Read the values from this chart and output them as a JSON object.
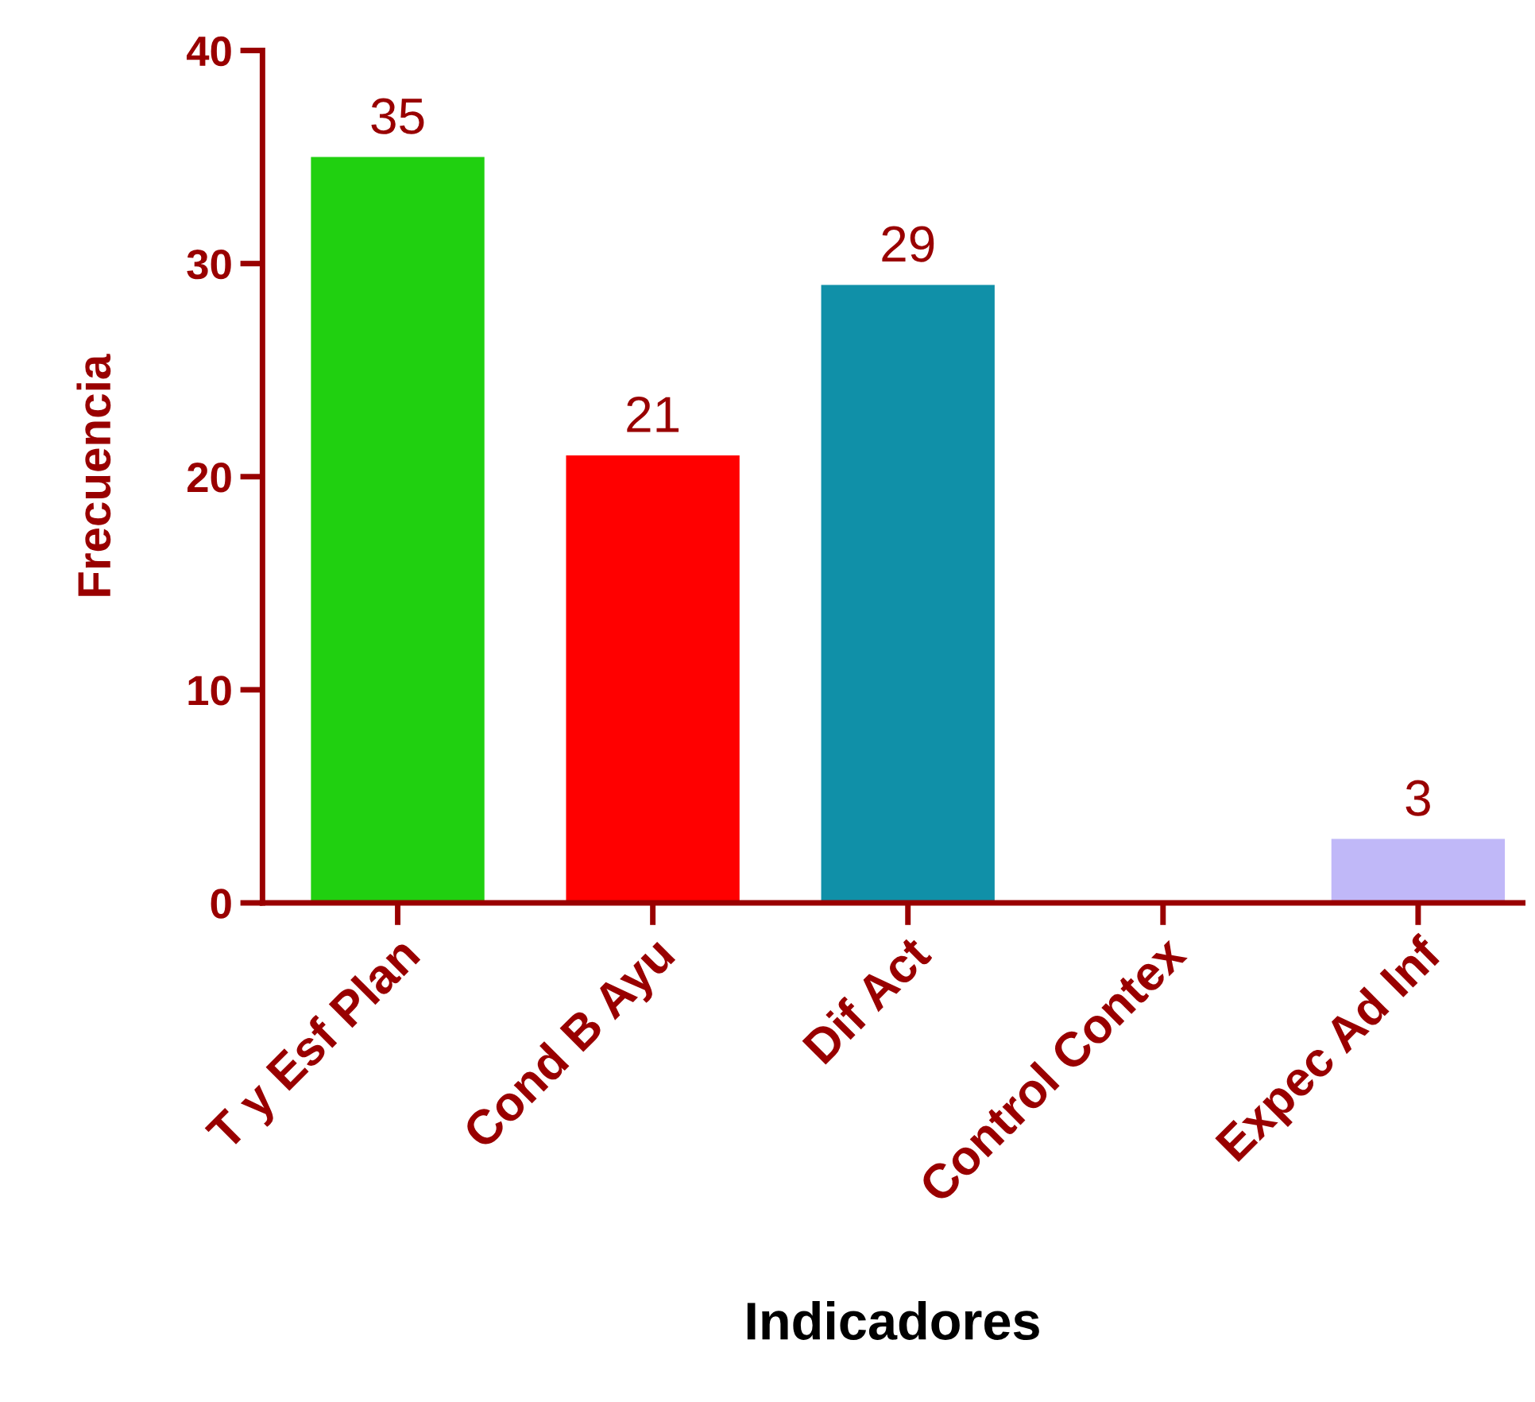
{
  "chart_data": {
    "type": "bar",
    "categories": [
      "T y Esf Plan",
      "Cond B Ayu",
      "Dif Act",
      "Control Contex",
      "Expec Ad Inf"
    ],
    "values": [
      35,
      21,
      29,
      0,
      3
    ],
    "value_labels": [
      "35",
      "21",
      "29",
      null,
      "3"
    ],
    "colors": [
      "#20d010",
      "#ff0000",
      "#1090a8",
      null,
      "#c0b8f8"
    ],
    "xlabel": "Indicadores",
    "ylabel": "Frecuencia",
    "ylim": [
      0,
      40
    ],
    "yticks": [
      0,
      10,
      20,
      30,
      40
    ],
    "grid": false,
    "legend": false
  }
}
